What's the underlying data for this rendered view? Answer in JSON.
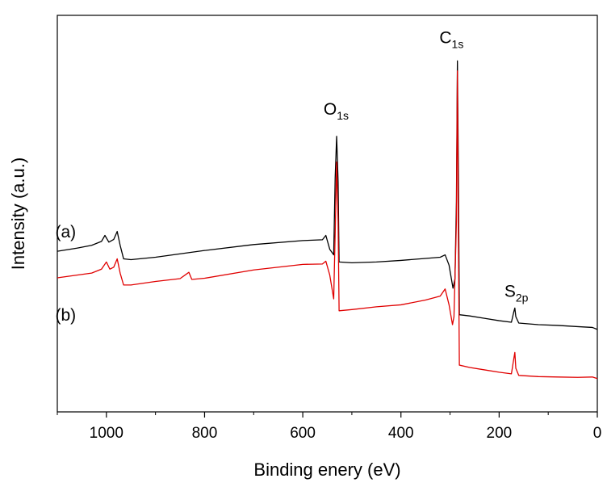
{
  "chart_data": {
    "type": "line",
    "title": "",
    "xlabel": "Binding enery (eV)",
    "ylabel": "Intensity (a.u.)",
    "xlim": [
      1100,
      0
    ],
    "x_reversed": true,
    "ylim": [
      0,
      100
    ],
    "y_ticks_shown": false,
    "grid": false,
    "x_ticks": [
      1000,
      800,
      600,
      400,
      200,
      0
    ],
    "x_tick_labels": [
      "1000",
      "800",
      "600",
      "400",
      "200",
      "0"
    ],
    "series": [
      {
        "name": "(a)",
        "color": "#000000",
        "points": [
          [
            1100,
            40.5
          ],
          [
            1060,
            41.3
          ],
          [
            1030,
            42.0
          ],
          [
            1010,
            43.0
          ],
          [
            1003,
            44.5
          ],
          [
            995,
            42.8
          ],
          [
            985,
            43.5
          ],
          [
            978,
            45.5
          ],
          [
            972,
            42.0
          ],
          [
            965,
            38.6
          ],
          [
            950,
            38.4
          ],
          [
            900,
            39.0
          ],
          [
            800,
            40.7
          ],
          [
            700,
            42.2
          ],
          [
            600,
            43.2
          ],
          [
            560,
            43.4
          ],
          [
            553,
            44.5
          ],
          [
            545,
            41.0
          ],
          [
            537,
            39.6
          ],
          [
            534,
            59.0
          ],
          [
            531,
            69.5
          ],
          [
            528,
            58.0
          ],
          [
            526,
            37.8
          ],
          [
            500,
            37.6
          ],
          [
            450,
            37.8
          ],
          [
            400,
            38.2
          ],
          [
            350,
            38.7
          ],
          [
            320,
            39.0
          ],
          [
            310,
            39.6
          ],
          [
            302,
            37.0
          ],
          [
            294,
            31.2
          ],
          [
            290,
            33.5
          ],
          [
            287,
            53.0
          ],
          [
            285,
            88.5
          ],
          [
            283,
            60.0
          ],
          [
            281,
            24.5
          ],
          [
            260,
            24.2
          ],
          [
            230,
            23.6
          ],
          [
            200,
            23.0
          ],
          [
            175,
            22.6
          ],
          [
            170,
            25.3
          ],
          [
            168,
            26.2
          ],
          [
            166,
            24.0
          ],
          [
            160,
            22.4
          ],
          [
            120,
            22.0
          ],
          [
            80,
            21.8
          ],
          [
            40,
            21.5
          ],
          [
            10,
            21.3
          ],
          [
            0,
            20.8
          ]
        ]
      },
      {
        "name": "(b)",
        "color": "#e00000",
        "points": [
          [
            1100,
            33.8
          ],
          [
            1060,
            34.5
          ],
          [
            1030,
            35.0
          ],
          [
            1010,
            36.0
          ],
          [
            1000,
            37.8
          ],
          [
            993,
            36.0
          ],
          [
            985,
            36.5
          ],
          [
            978,
            38.6
          ],
          [
            972,
            35.0
          ],
          [
            965,
            32.0
          ],
          [
            950,
            32.0
          ],
          [
            900,
            32.9
          ],
          [
            850,
            33.6
          ],
          [
            832,
            35.2
          ],
          [
            826,
            33.4
          ],
          [
            800,
            33.7
          ],
          [
            700,
            35.8
          ],
          [
            600,
            37.2
          ],
          [
            560,
            37.3
          ],
          [
            553,
            38.0
          ],
          [
            545,
            34.5
          ],
          [
            537,
            28.5
          ],
          [
            534,
            45.0
          ],
          [
            531,
            63.0
          ],
          [
            528,
            48.0
          ],
          [
            526,
            25.5
          ],
          [
            500,
            25.8
          ],
          [
            450,
            26.5
          ],
          [
            400,
            27.0
          ],
          [
            350,
            28.2
          ],
          [
            320,
            29.2
          ],
          [
            310,
            31.0
          ],
          [
            302,
            27.0
          ],
          [
            295,
            22.0
          ],
          [
            292,
            24.0
          ],
          [
            287,
            48.0
          ],
          [
            285,
            86.0
          ],
          [
            283,
            45.0
          ],
          [
            281,
            11.8
          ],
          [
            260,
            11.2
          ],
          [
            230,
            10.6
          ],
          [
            200,
            10.0
          ],
          [
            175,
            9.6
          ],
          [
            170,
            13.5
          ],
          [
            168,
            15.0
          ],
          [
            166,
            11.0
          ],
          [
            160,
            9.2
          ],
          [
            120,
            8.9
          ],
          [
            80,
            8.8
          ],
          [
            40,
            8.7
          ],
          [
            10,
            8.8
          ],
          [
            0,
            8.4
          ]
        ]
      }
    ],
    "annotations": [
      {
        "label": "O",
        "sub": "1s",
        "x": 532,
        "y": 75
      },
      {
        "label": "C",
        "sub": "1s",
        "x": 297,
        "y": 93
      },
      {
        "label": "S",
        "sub": "2p",
        "x": 165,
        "y": 29
      }
    ],
    "series_labels": [
      {
        "text": "(a)",
        "x": 1083,
        "y": 44
      },
      {
        "text": "(b)",
        "x": 1083,
        "y": 23
      }
    ]
  }
}
